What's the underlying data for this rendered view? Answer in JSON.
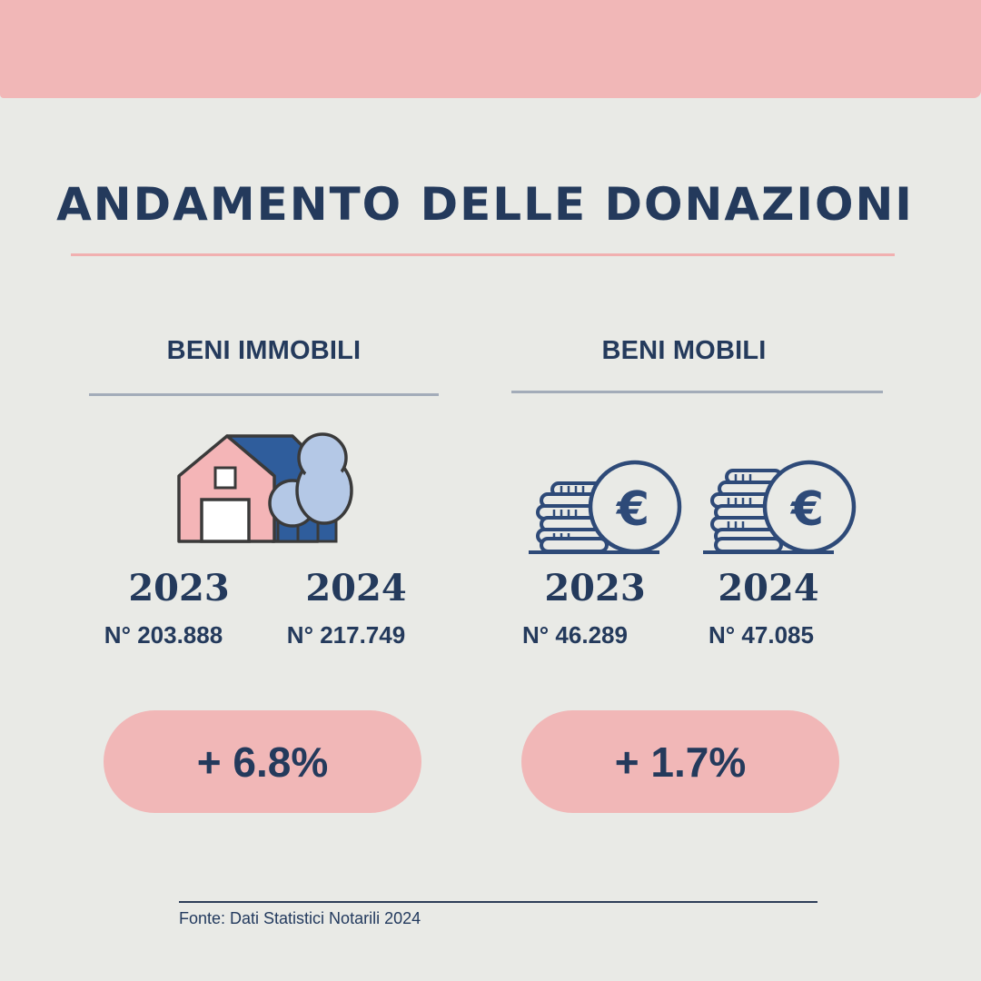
{
  "title": "ANDAMENTO DELLE DONAZIONI",
  "colors": {
    "navy": "#243a5c",
    "pink": "#f1b7b7",
    "background": "#e9eae6",
    "house_blue": "#2f5d9c",
    "tree_blue": "#b4c8e6"
  },
  "sections": [
    {
      "heading": "BENI IMMOBILI",
      "icon": "house-with-tree-icon",
      "years": [
        {
          "year": "2023",
          "count": "N° 203.888"
        },
        {
          "year": "2024",
          "count": "N° 217.749"
        }
      ],
      "change": "+ 6.8%"
    },
    {
      "heading": "BENI MOBILI",
      "icon": "euro-coins-icon",
      "years": [
        {
          "year": "2023",
          "count": "N° 46.289"
        },
        {
          "year": "2024",
          "count": "N° 47.085"
        }
      ],
      "change": "+ 1.7%"
    }
  ],
  "source": "Fonte: Dati Statistici Notarili 2024"
}
